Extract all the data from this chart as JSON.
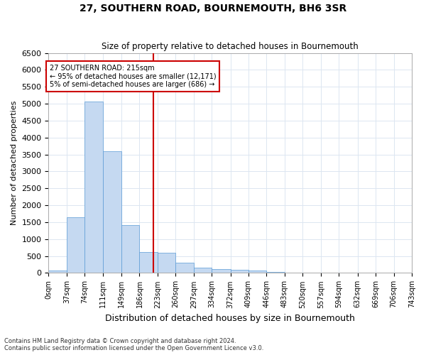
{
  "title": "27, SOUTHERN ROAD, BOURNEMOUTH, BH6 3SR",
  "subtitle": "Size of property relative to detached houses in Bournemouth",
  "xlabel": "Distribution of detached houses by size in Bournemouth",
  "ylabel": "Number of detached properties",
  "footnote1": "Contains HM Land Registry data © Crown copyright and database right 2024.",
  "footnote2": "Contains public sector information licensed under the Open Government Licence v3.0.",
  "bar_color": "#c5d9f1",
  "bar_edge_color": "#5b9bd5",
  "grid_color": "#dce6f1",
  "vline_color": "#cc0000",
  "annotation_box_color": "#cc0000",
  "annotation_text": "27 SOUTHERN ROAD: 215sqm\n← 95% of detached houses are smaller (12,171)\n5% of semi-detached houses are larger (686) →",
  "property_sqm": 215,
  "bin_edges": [
    0,
    37,
    74,
    111,
    149,
    186,
    223,
    260,
    297,
    334,
    372,
    409,
    446,
    483,
    520,
    557,
    594,
    632,
    669,
    706,
    743
  ],
  "bar_heights": [
    75,
    1650,
    5070,
    3600,
    1420,
    620,
    590,
    300,
    165,
    120,
    90,
    70,
    30,
    0,
    0,
    0,
    0,
    0,
    0,
    0
  ],
  "ylim": [
    0,
    6500
  ],
  "yticks": [
    0,
    500,
    1000,
    1500,
    2000,
    2500,
    3000,
    3500,
    4000,
    4500,
    5000,
    5500,
    6000,
    6500
  ],
  "figsize": [
    6.0,
    5.0
  ],
  "dpi": 100
}
